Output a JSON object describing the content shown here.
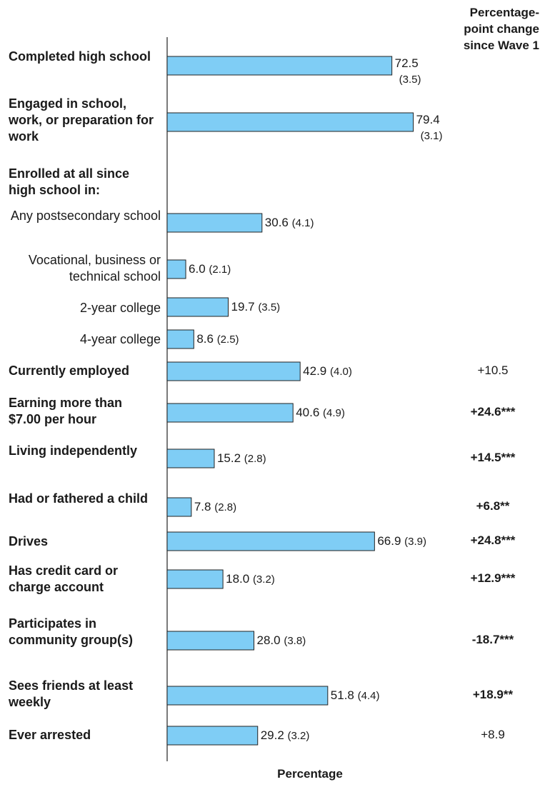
{
  "chart_data": {
    "type": "bar",
    "orientation": "horizontal",
    "xlabel": "Percentage",
    "xlim": [
      0,
      100
    ],
    "change_header": [
      "Percentage-",
      "point change",
      "since Wave 1"
    ],
    "bar_color": "#7fcdf5",
    "bar_edge_color": "#222222",
    "rows": [
      {
        "label": "Completed high school",
        "bold": true,
        "value": 72.5,
        "value_text": "72.5",
        "se": "(3.5)",
        "stack": true,
        "change": "",
        "change_bold": false
      },
      {
        "label": "Engaged in school, work, or preparation for work",
        "bold": true,
        "value": 79.4,
        "value_text": "79.4",
        "se": "(3.1)",
        "stack": true,
        "change": "",
        "change_bold": false
      },
      {
        "label": "Enrolled at all since high school in:",
        "bold": true,
        "value": null,
        "value_text": "",
        "se": "",
        "stack": false,
        "change": "",
        "change_bold": false
      },
      {
        "label": "Any postsecondary school",
        "bold": false,
        "value": 30.6,
        "value_text": "30.6",
        "se": "(4.1)",
        "stack": false,
        "change": "",
        "change_bold": false
      },
      {
        "label": "Vocational, business or technical school",
        "bold": false,
        "value": 6.0,
        "value_text": "6.0",
        "se": "(2.1)",
        "stack": false,
        "change": "",
        "change_bold": false
      },
      {
        "label": "2-year college",
        "bold": false,
        "value": 19.7,
        "value_text": "19.7",
        "se": "(3.5)",
        "stack": false,
        "change": "",
        "change_bold": false
      },
      {
        "label": "4-year college",
        "bold": false,
        "value": 8.6,
        "value_text": "8.6",
        "se": "(2.5)",
        "stack": false,
        "change": "",
        "change_bold": false
      },
      {
        "label": "Currently employed",
        "bold": true,
        "value": 42.9,
        "value_text": "42.9",
        "se": "(4.0)",
        "stack": false,
        "change": "+10.5",
        "change_bold": false
      },
      {
        "label": "Earning more than $7.00 per hour",
        "bold": true,
        "value": 40.6,
        "value_text": "40.6",
        "se": "(4.9)",
        "stack": false,
        "change": "+24.6***",
        "change_bold": true
      },
      {
        "label": "Living independently",
        "bold": true,
        "value": 15.2,
        "value_text": "15.2",
        "se": "(2.8)",
        "stack": false,
        "change": "+14.5***",
        "change_bold": true
      },
      {
        "label": "Had or fathered a child",
        "bold": true,
        "value": 7.8,
        "value_text": "7.8",
        "se": "(2.8)",
        "stack": false,
        "change": "+6.8**",
        "change_bold": true
      },
      {
        "label": "Drives",
        "bold": true,
        "value": 66.9,
        "value_text": "66.9",
        "se": "(3.9)",
        "stack": false,
        "change": "+24.8***",
        "change_bold": true
      },
      {
        "label": "Has credit card or charge account",
        "bold": true,
        "value": 18.0,
        "value_text": "18.0",
        "se": "(3.2)",
        "stack": false,
        "change": "+12.9***",
        "change_bold": true
      },
      {
        "label": "Participates in community group(s)",
        "bold": true,
        "value": 28.0,
        "value_text": "28.0",
        "se": "(3.8)",
        "stack": false,
        "change": "-18.7***",
        "change_bold": true
      },
      {
        "label": "Sees friends at least weekly",
        "bold": true,
        "value": 51.8,
        "value_text": "51.8",
        "se": "(4.4)",
        "stack": false,
        "change": "+18.9**",
        "change_bold": true
      },
      {
        "label": "Ever arrested",
        "bold": true,
        "value": 29.2,
        "value_text": "29.2",
        "se": "(3.2)",
        "stack": false,
        "change": "+8.9",
        "change_bold": false
      }
    ]
  }
}
